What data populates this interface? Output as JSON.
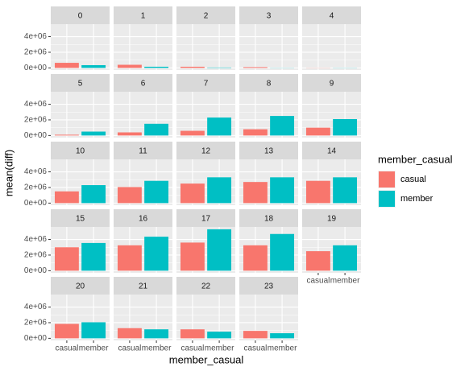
{
  "chart_data": {
    "type": "bar",
    "xlabel": "member_casual",
    "ylabel": "mean(diff)",
    "legend_title": "member_casual",
    "categories": [
      "casual",
      "member"
    ],
    "colors": [
      "#F8766D",
      "#00BFC4"
    ],
    "ylim": [
      -270000,
      5600000
    ],
    "yticks": [
      {
        "value": 0,
        "label": "0e+00"
      },
      {
        "value": 2000000,
        "label": "2e+06"
      },
      {
        "value": 4000000,
        "label": "4e+06"
      }
    ],
    "facets": [
      {
        "label": "0",
        "values": [
          650000,
          350000
        ]
      },
      {
        "label": "1",
        "values": [
          400000,
          150000
        ]
      },
      {
        "label": "2",
        "values": [
          150000,
          50000
        ]
      },
      {
        "label": "3",
        "values": [
          100000,
          20000
        ]
      },
      {
        "label": "4",
        "values": [
          20000,
          20000
        ]
      },
      {
        "label": "5",
        "values": [
          100000,
          500000
        ]
      },
      {
        "label": "6",
        "values": [
          400000,
          1500000
        ]
      },
      {
        "label": "7",
        "values": [
          600000,
          2300000
        ]
      },
      {
        "label": "8",
        "values": [
          800000,
          2500000
        ]
      },
      {
        "label": "9",
        "values": [
          1000000,
          2100000
        ]
      },
      {
        "label": "10",
        "values": [
          1500000,
          2300000
        ]
      },
      {
        "label": "11",
        "values": [
          2050000,
          2850000
        ]
      },
      {
        "label": "12",
        "values": [
          2500000,
          3300000
        ]
      },
      {
        "label": "13",
        "values": [
          2700000,
          3300000
        ]
      },
      {
        "label": "14",
        "values": [
          2850000,
          3300000
        ]
      },
      {
        "label": "15",
        "values": [
          3000000,
          3550000
        ]
      },
      {
        "label": "16",
        "values": [
          3250000,
          4350000
        ]
      },
      {
        "label": "17",
        "values": [
          3600000,
          5300000
        ]
      },
      {
        "label": "18",
        "values": [
          3250000,
          4700000
        ]
      },
      {
        "label": "19",
        "values": [
          2500000,
          3250000
        ]
      },
      {
        "label": "20",
        "values": [
          1850000,
          2050000
        ]
      },
      {
        "label": "21",
        "values": [
          1300000,
          1150000
        ]
      },
      {
        "label": "22",
        "values": [
          1150000,
          850000
        ]
      },
      {
        "label": "23",
        "values": [
          950000,
          650000
        ]
      }
    ]
  }
}
